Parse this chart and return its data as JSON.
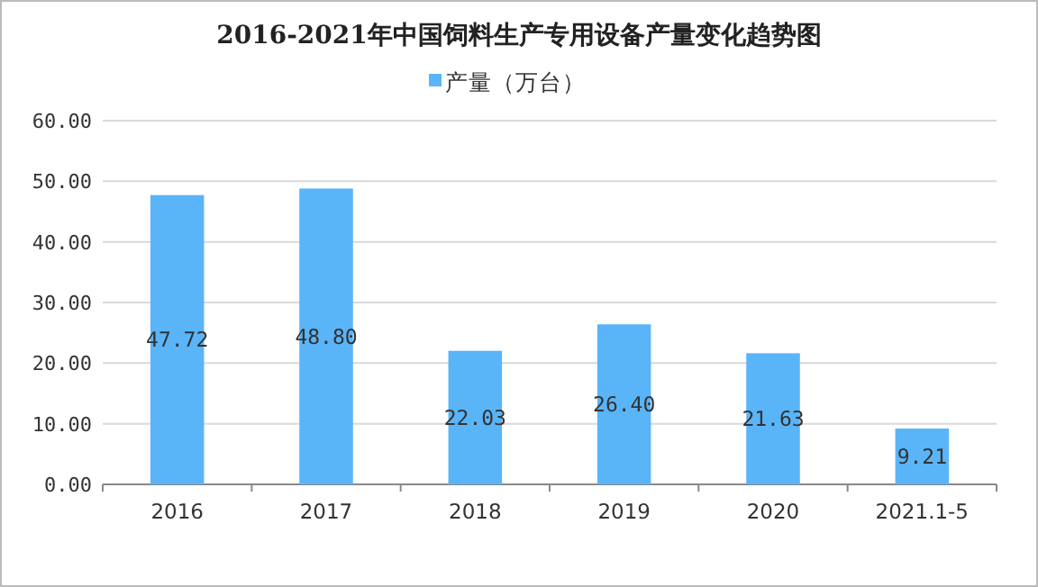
{
  "chart_data": {
    "type": "bar",
    "title": "2016-2021年中国饲料生产专用设备产量变化趋势图",
    "categories": [
      "2016",
      "2017",
      "2018",
      "2019",
      "2020",
      "2021.1-5"
    ],
    "series": [
      {
        "name": "产量（万台）",
        "color": "#5ab4f8",
        "values": [
          47.72,
          48.8,
          22.03,
          26.4,
          21.63,
          9.21
        ],
        "value_labels": [
          "47.72",
          "48.80",
          "22.03",
          "26.40",
          "21.63",
          "9.21"
        ]
      }
    ],
    "ylim": [
      0,
      60
    ],
    "yticks": [
      {
        "value": 0,
        "label": "0.00"
      },
      {
        "value": 10,
        "label": "10.00"
      },
      {
        "value": 20,
        "label": "20.00"
      },
      {
        "value": 30,
        "label": "30.00"
      },
      {
        "value": 40,
        "label": "40.00"
      },
      {
        "value": 50,
        "label": "50.00"
      },
      {
        "value": 60,
        "label": "60.00"
      }
    ],
    "grid": "y",
    "legend": "top"
  }
}
